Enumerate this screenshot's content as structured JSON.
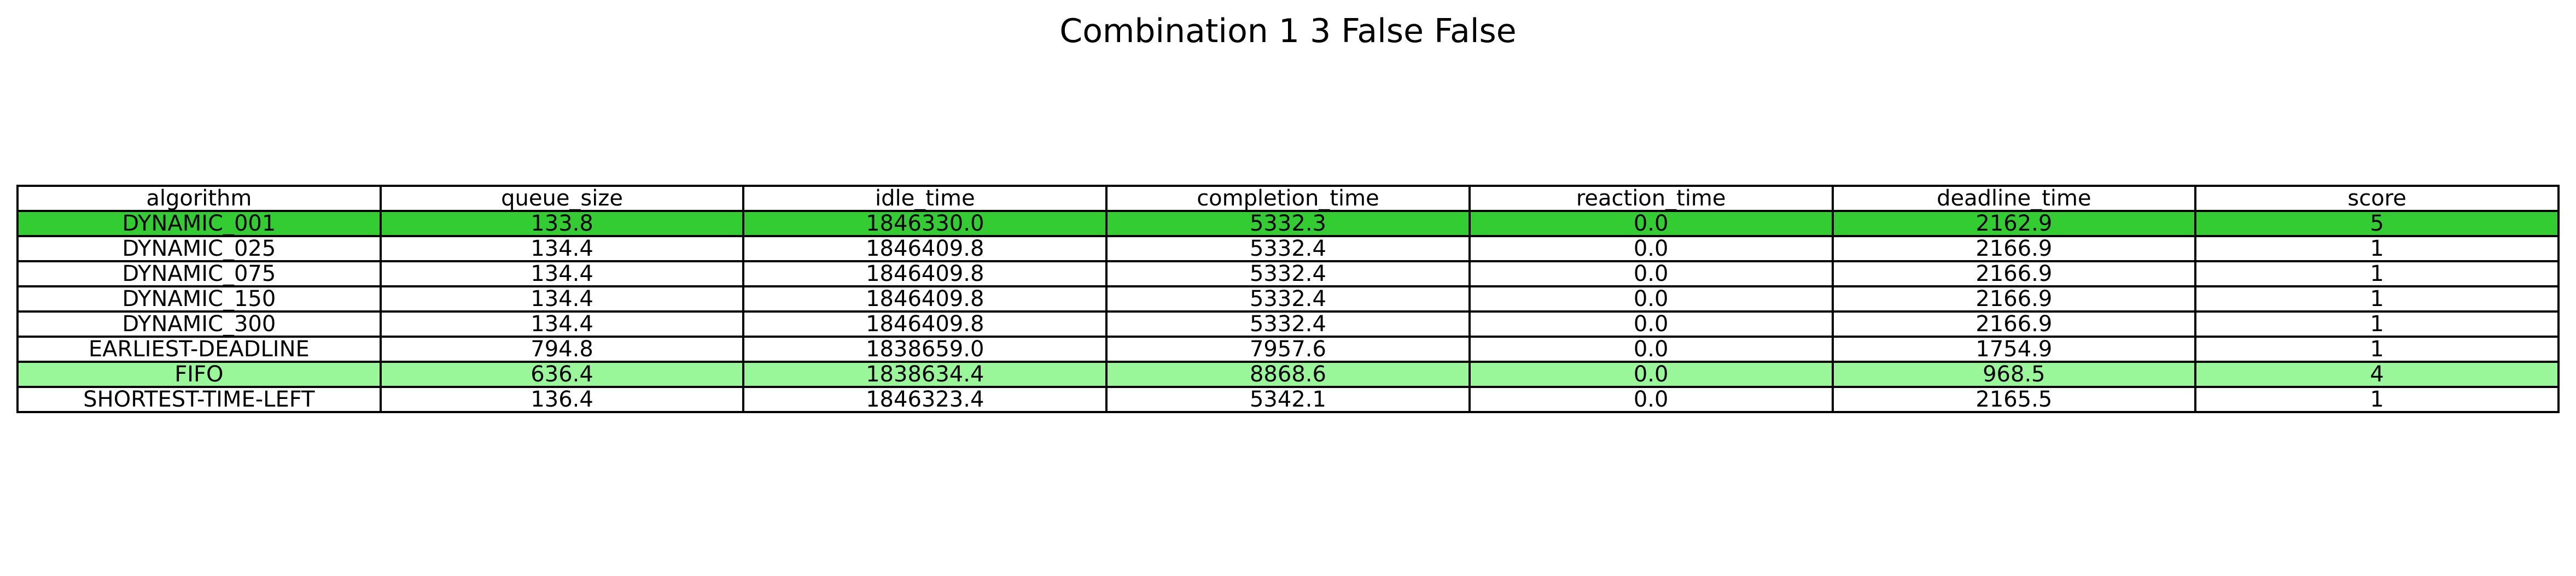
{
  "chart_data": {
    "type": "table",
    "title": "Combination 1 3 False False",
    "columns": [
      "algorithm",
      "queue_size",
      "idle_time",
      "completion_time",
      "reaction_time",
      "deadline_time",
      "score"
    ],
    "rows": [
      {
        "cells": [
          "DYNAMIC_001",
          "133.8",
          "1846330.0",
          "5332.3",
          "0.0",
          "2162.9",
          "5"
        ],
        "highlight": "#33cc33"
      },
      {
        "cells": [
          "DYNAMIC_025",
          "134.4",
          "1846409.8",
          "5332.4",
          "0.0",
          "2166.9",
          "1"
        ],
        "highlight": null
      },
      {
        "cells": [
          "DYNAMIC_075",
          "134.4",
          "1846409.8",
          "5332.4",
          "0.0",
          "2166.9",
          "1"
        ],
        "highlight": null
      },
      {
        "cells": [
          "DYNAMIC_150",
          "134.4",
          "1846409.8",
          "5332.4",
          "0.0",
          "2166.9",
          "1"
        ],
        "highlight": null
      },
      {
        "cells": [
          "DYNAMIC_300",
          "134.4",
          "1846409.8",
          "5332.4",
          "0.0",
          "2166.9",
          "1"
        ],
        "highlight": null
      },
      {
        "cells": [
          "EARLIEST-DEADLINE",
          "794.8",
          "1838659.0",
          "7957.6",
          "0.0",
          "1754.9",
          "1"
        ],
        "highlight": null
      },
      {
        "cells": [
          "FIFO",
          "636.4",
          "1838634.4",
          "8868.6",
          "0.0",
          "968.5",
          "4"
        ],
        "highlight": "#99f799"
      },
      {
        "cells": [
          "SHORTEST-TIME-LEFT",
          "136.4",
          "1846323.4",
          "5342.1",
          "0.0",
          "2165.5",
          "1"
        ],
        "highlight": null
      }
    ]
  }
}
